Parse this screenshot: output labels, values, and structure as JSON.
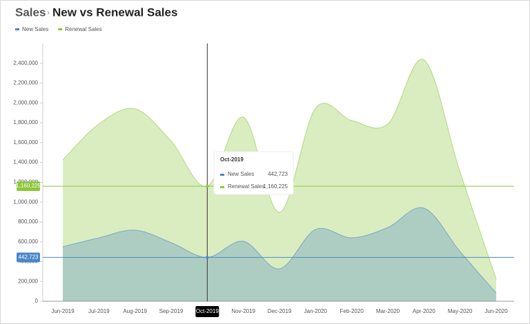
{
  "chart_data": {
    "type": "area",
    "title": "Sales",
    "subtitle": "New vs Renewal Sales",
    "categories": [
      "Jun-2019",
      "Jul-2019",
      "Aug-2019",
      "Sep-2019",
      "Oct-2019",
      "Nov-2019",
      "Dec-2019",
      "Jan-2020",
      "Feb-2020",
      "Mar-2020",
      "Apr-2020",
      "May-2020",
      "Jun-2020"
    ],
    "series": [
      {
        "name": "Renewal Sales",
        "color": "#8dc63f",
        "values": [
          1426000,
          1788000,
          1941000,
          1614000,
          1160225,
          1857000,
          897000,
          1948000,
          1823000,
          1788000,
          2435000,
          1301000,
          223000
        ],
        "value_labels": [
          null,
          null,
          null,
          null,
          "1,160,225",
          null,
          null,
          null,
          null,
          null,
          null,
          null,
          null
        ]
      },
      {
        "name": "New Sales",
        "color": "#4a86c8",
        "values": [
          550000,
          640000,
          717000,
          591000,
          442723,
          605000,
          327000,
          724000,
          640000,
          744000,
          939000,
          501000,
          83000
        ],
        "value_labels": [
          null,
          null,
          null,
          null,
          "442,723",
          null,
          null,
          null,
          null,
          null,
          null,
          null,
          null
        ]
      }
    ],
    "ylim": [
      0,
      2600000
    ],
    "yticks": [
      0,
      {
        "value": 200000,
        "label": "200,000"
      },
      {
        "value": 400000,
        "label": "400,000"
      },
      {
        "value": 600000,
        "label": "600,000"
      },
      {
        "value": 800000,
        "label": "800,000"
      },
      {
        "value": 1000000,
        "label": "1,000,000"
      },
      {
        "value": 1200000,
        "label": "1,200,000"
      },
      {
        "value": 1400000,
        "label": "1,400,000"
      },
      {
        "value": 1600000,
        "label": "1,600,000"
      },
      {
        "value": 1800000,
        "label": "1,800,000"
      },
      {
        "value": 2000000,
        "label": "2,000,000"
      },
      {
        "value": 2200000,
        "label": "2,200,000"
      },
      {
        "value": 2400000,
        "label": "2,400,000"
      }
    ],
    "active_index": 4,
    "legend": "top-left"
  }
}
